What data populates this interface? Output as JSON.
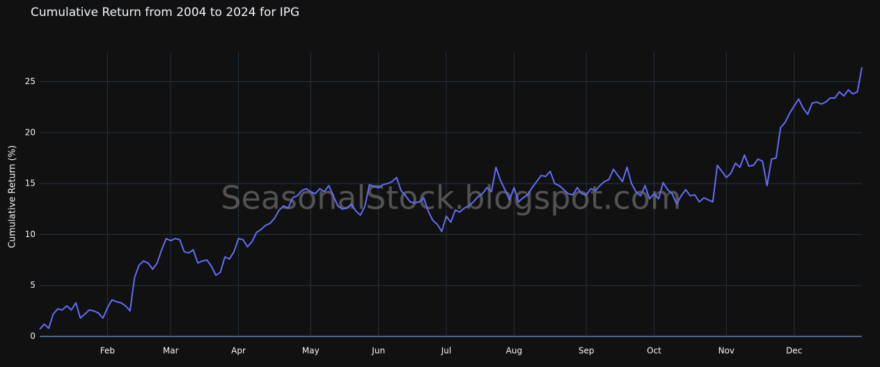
{
  "chart_data": {
    "type": "line",
    "title": "Cumulative Return from 2004 to 2024 for IPG",
    "y_label": "Cumulative Return (%)",
    "watermark": "SeasonalStock.blogspot.com",
    "color": "#636efa",
    "grid": true,
    "ylim": [
      0,
      27.9
    ],
    "yticks": [
      0,
      5,
      10,
      15,
      20,
      25
    ],
    "categories": [
      null,
      null,
      null,
      null,
      null,
      null,
      null,
      null,
      null,
      null,
      null,
      null,
      null,
      null,
      null,
      "Feb",
      null,
      null,
      null,
      null,
      null,
      null,
      null,
      null,
      null,
      null,
      null,
      null,
      null,
      "Mar",
      null,
      null,
      null,
      null,
      null,
      null,
      null,
      null,
      null,
      null,
      null,
      null,
      null,
      null,
      "Apr",
      null,
      null,
      null,
      null,
      null,
      null,
      null,
      null,
      null,
      null,
      null,
      null,
      null,
      null,
      null,
      "May",
      null,
      null,
      null,
      null,
      null,
      null,
      null,
      null,
      null,
      null,
      null,
      null,
      null,
      null,
      "Jun",
      null,
      null,
      null,
      null,
      null,
      null,
      null,
      null,
      null,
      null,
      null,
      null,
      null,
      null,
      "Jul",
      null,
      null,
      null,
      null,
      null,
      null,
      null,
      null,
      null,
      null,
      null,
      null,
      null,
      null,
      "Aug",
      null,
      null,
      null,
      null,
      null,
      null,
      null,
      null,
      null,
      null,
      null,
      null,
      null,
      null,
      null,
      "Sep",
      null,
      null,
      null,
      null,
      null,
      null,
      null,
      null,
      null,
      null,
      null,
      null,
      null,
      null,
      "Oct",
      null,
      null,
      null,
      null,
      null,
      null,
      null,
      null,
      null,
      null,
      null,
      null,
      null,
      null,
      null,
      "Nov",
      null,
      null,
      null,
      null,
      null,
      null,
      null,
      null,
      null,
      null,
      null,
      null,
      null,
      null,
      "Dec",
      null,
      null,
      null,
      null,
      null,
      null,
      null,
      null,
      null,
      null,
      null,
      null,
      null,
      null,
      null
    ],
    "values": [
      0.7,
      1.2,
      0.8,
      2.2,
      2.7,
      2.6,
      3.0,
      2.6,
      3.3,
      1.8,
      2.2,
      2.6,
      2.5,
      2.3,
      1.8,
      2.8,
      3.6,
      3.4,
      3.3,
      3.0,
      2.5,
      5.8,
      7.0,
      7.4,
      7.2,
      6.6,
      7.2,
      8.5,
      9.6,
      9.4,
      9.6,
      9.5,
      8.3,
      8.2,
      8.5,
      7.2,
      7.4,
      7.5,
      6.9,
      6.0,
      6.3,
      7.8,
      7.6,
      8.3,
      9.6,
      9.5,
      8.8,
      9.3,
      10.2,
      10.5,
      10.9,
      11.1,
      11.6,
      12.4,
      12.8,
      12.6,
      13.6,
      13.8,
      14.3,
      14.5,
      14.2,
      14.0,
      14.5,
      14.2,
      14.8,
      13.8,
      12.8,
      12.5,
      12.6,
      13.0,
      12.3,
      11.9,
      12.8,
      14.9,
      14.7,
      14.6,
      14.9,
      15.0,
      15.2,
      15.6,
      14.3,
      13.8,
      13.2,
      13.1,
      13.2,
      13.6,
      12.3,
      11.4,
      11.0,
      10.3,
      11.8,
      11.2,
      12.4,
      12.2,
      12.6,
      12.8,
      13.2,
      13.7,
      14.0,
      14.6,
      14.2,
      16.6,
      15.3,
      14.4,
      13.4,
      14.6,
      13.2,
      13.6,
      13.9,
      14.6,
      15.2,
      15.8,
      15.7,
      16.2,
      15.0,
      14.8,
      14.4,
      14.0,
      13.9,
      14.6,
      14.0,
      13.9,
      14.5,
      14.3,
      14.8,
      15.2,
      15.4,
      16.4,
      15.8,
      15.2,
      16.6,
      15.0,
      14.2,
      13.8,
      14.8,
      13.5,
      14.0,
      13.5,
      15.1,
      14.4,
      14.0,
      13.0,
      13.8,
      14.4,
      13.8,
      13.9,
      13.2,
      13.6,
      13.4,
      13.2,
      16.8,
      16.2,
      15.6,
      16.0,
      17.0,
      16.6,
      17.8,
      16.7,
      16.8,
      17.4,
      17.2,
      14.8,
      17.4,
      17.5,
      20.5,
      21.0,
      21.9,
      22.6,
      23.3,
      22.4,
      21.8,
      22.9,
      23.0,
      22.8,
      23.0,
      23.4,
      23.4,
      24.0,
      23.6,
      24.2,
      23.8,
      24.0,
      26.4
    ]
  }
}
